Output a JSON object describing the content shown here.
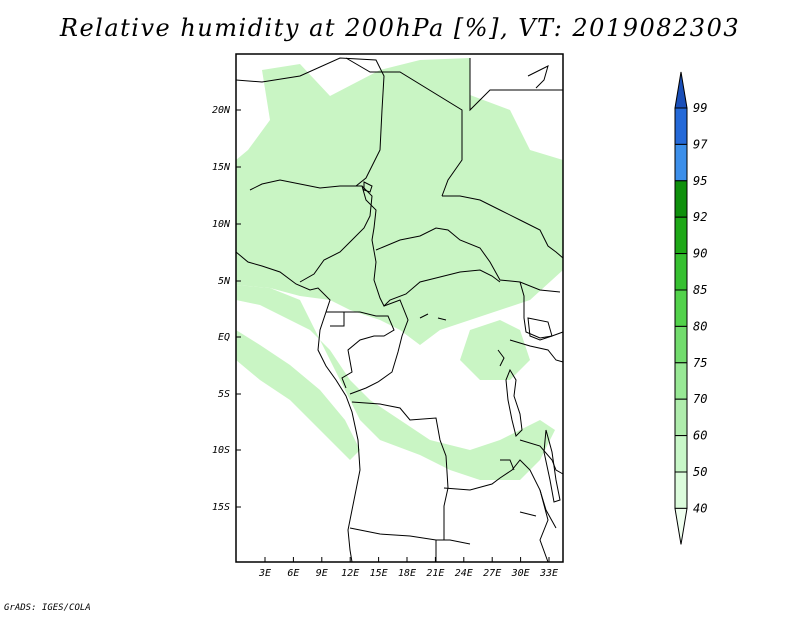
{
  "map": {
    "title": "Relative humidity at 200hPa [%], VT: 2019082303",
    "credit": "GrADS: IGES/COLA",
    "lat_labels": [
      "20N",
      "15N",
      "10N",
      "5N",
      "EQ",
      "5S",
      "10S",
      "15S"
    ],
    "lon_labels": [
      "3E",
      "6E",
      "9E",
      "12E",
      "15E",
      "18E",
      "21E",
      "24E",
      "27E",
      "30E",
      "33E"
    ],
    "colorbar": {
      "levels": [
        "40",
        "50",
        "60",
        "70",
        "75",
        "80",
        "85",
        "90",
        "92",
        "95",
        "97",
        "99"
      ],
      "colors": [
        "#effeef",
        "#dcfcdc",
        "#c8f7c8",
        "#afecac",
        "#98e895",
        "#72dc6d",
        "#52d24b",
        "#36c030",
        "#1ea817",
        "#0f900c",
        "#3c8fea",
        "#2469d8",
        "#1a4fb8"
      ]
    },
    "shading_color": "#c9f5c4"
  }
}
